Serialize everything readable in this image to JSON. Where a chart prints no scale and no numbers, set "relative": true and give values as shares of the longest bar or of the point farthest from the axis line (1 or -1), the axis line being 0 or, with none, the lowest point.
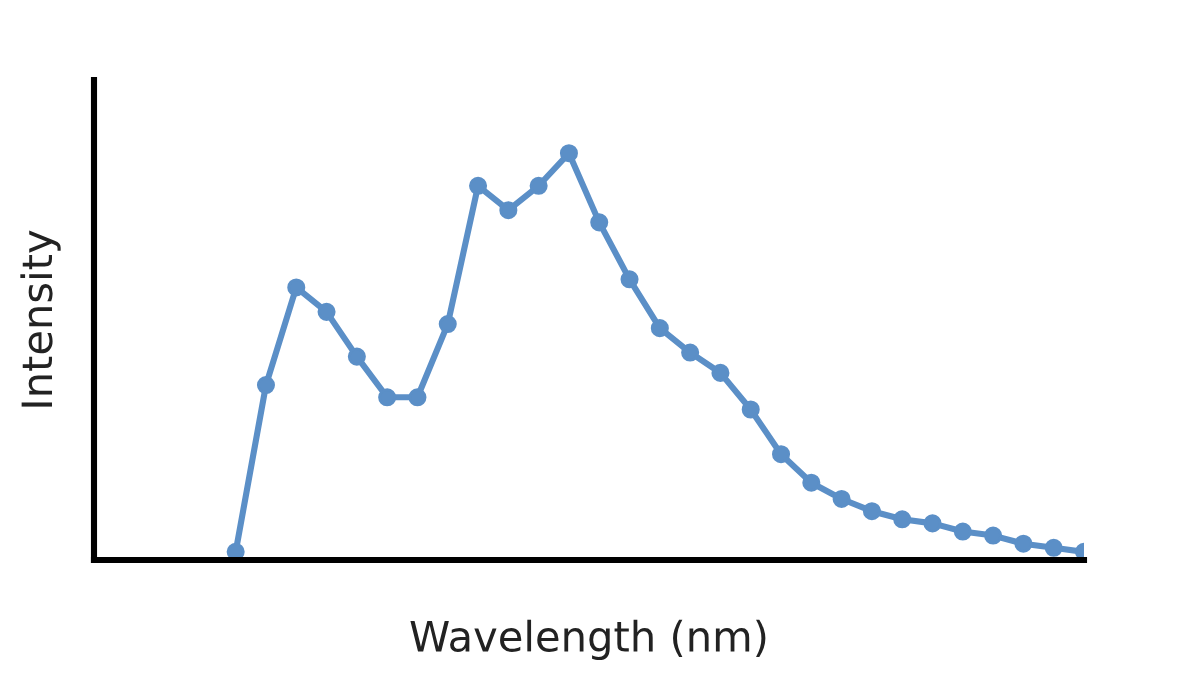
{
  "chart_data": {
    "type": "line",
    "xlabel": "Wavelength (nm)",
    "ylabel": "Intensity",
    "relative": true,
    "categories": [
      null,
      null,
      null,
      null,
      null,
      null,
      null,
      null,
      null,
      null,
      null,
      null,
      null,
      null,
      null,
      null,
      null,
      null,
      null,
      null,
      null,
      null,
      null,
      null,
      null,
      null,
      null,
      null,
      null
    ],
    "series": [
      {
        "color": "#5b8fc7",
        "values": [
          0.02,
          0.43,
          0.67,
          0.61,
          0.5,
          0.4,
          0.4,
          0.58,
          0.92,
          0.86,
          0.92,
          1,
          0.83,
          0.69,
          0.57,
          0.51,
          0.46,
          0.37,
          0.26,
          0.19,
          0.15,
          0.12,
          0.1,
          0.09,
          0.07,
          0.06,
          0.04,
          0.03,
          0.02
        ]
      }
    ],
    "marker": "circle",
    "line_style": "solid"
  }
}
